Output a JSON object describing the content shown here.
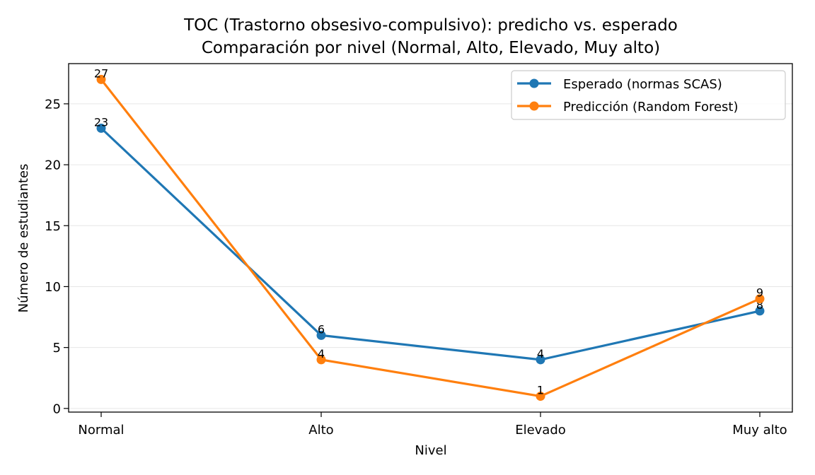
{
  "chart_data": {
    "type": "line",
    "title_line1": "TOC (Trastorno obsesivo-compulsivo): predicho vs. esperado",
    "title_line2": "Comparación por nivel (Normal, Alto, Elevado, Muy alto)",
    "xlabel": "Nivel",
    "ylabel": "Número de estudiantes",
    "categories": [
      "Normal",
      "Alto",
      "Elevado",
      "Muy alto"
    ],
    "ylim": [
      -0.3,
      28.3
    ],
    "yticks": [
      0,
      5,
      10,
      15,
      20,
      25
    ],
    "grid": "y",
    "legend_position": "top-right",
    "series": [
      {
        "name": "Esperado (normas SCAS)",
        "color": "#1f77b4",
        "values": [
          23,
          6,
          4,
          8
        ]
      },
      {
        "name": "Predicción (Random Forest)",
        "color": "#ff7f0e",
        "values": [
          27,
          4,
          1,
          9
        ]
      }
    ]
  }
}
